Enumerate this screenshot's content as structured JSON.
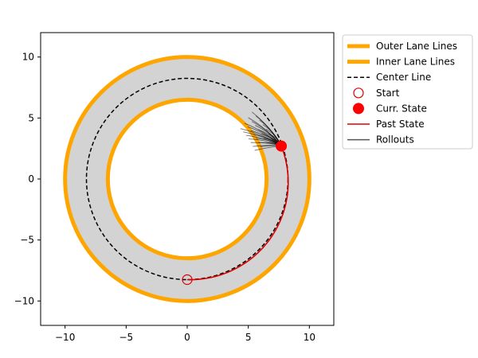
{
  "chart_data": {
    "type": "line",
    "title": "",
    "xlabel": "",
    "ylabel": "",
    "xlim": [
      -12,
      12
    ],
    "ylim": [
      -12,
      12
    ],
    "aspect": "equal",
    "grid": false,
    "legend_placement": "outside-upper-right",
    "x_ticks": [
      -10,
      -5,
      0,
      5,
      10
    ],
    "x_tick_labels": [
      "−10",
      "−5",
      "0",
      "5",
      "10"
    ],
    "y_ticks": [
      -10,
      -5,
      0,
      5,
      10
    ],
    "y_tick_labels": [
      "−10",
      "−5",
      "0",
      "5",
      "10"
    ],
    "track": {
      "outer_radius": 10.0,
      "inner_radius": 6.5,
      "center_radius": 8.25,
      "fill_color": "#d3d3d3",
      "lane_color": "#ffa500"
    },
    "start": {
      "x": 0.0,
      "y": -8.25
    },
    "current_state": {
      "x": 7.7,
      "y": 2.7
    },
    "past_state_color": "#dd0000",
    "rollout_color": "#000000",
    "rollouts": {
      "origin": {
        "x": 7.7,
        "y": 2.7
      },
      "count": 28,
      "end_radius_range": [
        6.0,
        8.1
      ],
      "end_angle_range_deg": [
        23,
        46
      ]
    },
    "legend": [
      {
        "label": "Outer Lane Lines",
        "style": "thick-line",
        "color": "#ffa500"
      },
      {
        "label": "Inner Lane Lines",
        "style": "thick-line",
        "color": "#ffa500"
      },
      {
        "label": "Center Line",
        "style": "dashed-line",
        "color": "#000000"
      },
      {
        "label": "Start",
        "style": "open-circle",
        "color": "#dd0000"
      },
      {
        "label": "Curr. State",
        "style": "filled-circle",
        "color": "#ff0000"
      },
      {
        "label": "Past State",
        "style": "line",
        "color": "#dd0000"
      },
      {
        "label": "Rollouts",
        "style": "line",
        "color": "#555555"
      }
    ]
  }
}
